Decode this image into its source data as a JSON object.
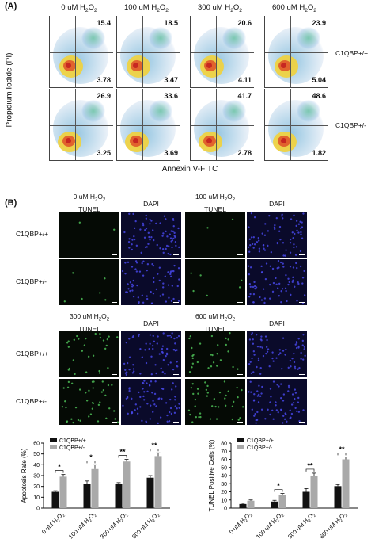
{
  "panelA": {
    "label": "(A)",
    "conditions": [
      "0 uM H2O2",
      "100 uM H2O2",
      "300 uM H2O2",
      "600 uM H2O2"
    ],
    "y_axis": "Propidium Iodide (PI)",
    "x_axis": "Annexin V-FITC",
    "rows": [
      {
        "label": "C1QBP+/+",
        "upper": [
          "15.4",
          "18.5",
          "20.6",
          "23.9"
        ],
        "lower": [
          "3.78",
          "3.47",
          "4.11",
          "5.04"
        ]
      },
      {
        "label": "C1QBP+/-",
        "upper": [
          "26.9",
          "33.6",
          "41.7",
          "48.6"
        ],
        "lower": [
          "3.25",
          "3.69",
          "2.78",
          "1.82"
        ]
      }
    ]
  },
  "panelB": {
    "label": "(B)",
    "groups": [
      {
        "condition": "0 uM H2O2",
        "tunel": "TUNEL",
        "dapi": "DAPI"
      },
      {
        "condition": "100 uM H2O2",
        "tunel": "TUNEL",
        "dapi": "DAPI"
      },
      {
        "condition": "300 uM H2O2",
        "tunel": "TUNEL",
        "dapi": "DAPI"
      },
      {
        "condition": "600 uM H2O2",
        "tunel": "TUNEL",
        "dapi": "DAPI"
      }
    ],
    "row_labels": [
      "C1QBP+/+",
      "C1QBP+/-"
    ]
  },
  "chart_data": [
    {
      "type": "bar",
      "categories": [
        "0 uM H2O2",
        "100 uM H2O2",
        "300 uM H2O2",
        "600 uM H2O2"
      ],
      "series": [
        {
          "name": "C1QBP+/+",
          "values": [
            15,
            22,
            22,
            28
          ],
          "errors": [
            1,
            3,
            1.5,
            2
          ],
          "color": "#111111"
        },
        {
          "name": "C1QBP+/-",
          "values": [
            29,
            36,
            43,
            48
          ],
          "errors": [
            2,
            4,
            2,
            3
          ],
          "color": "#a9a9a9"
        }
      ],
      "significance": [
        "*",
        "*",
        "**",
        "**"
      ],
      "ylabel": "Apoptosis Rate (%)",
      "ylim": [
        0,
        60
      ],
      "yticks": [
        0,
        10,
        20,
        30,
        40,
        50,
        60
      ],
      "legend": "top-left"
    },
    {
      "type": "bar",
      "categories": [
        "0 uM H2O2",
        "100 uM H2O2",
        "300 uM H2O2",
        "600 uM H2O2"
      ],
      "series": [
        {
          "name": "C1QBP+/+",
          "values": [
            5,
            8,
            20,
            27
          ],
          "errors": [
            1,
            1.5,
            4,
            2
          ],
          "color": "#111111"
        },
        {
          "name": "C1QBP+/-",
          "values": [
            9,
            16,
            40,
            60
          ],
          "errors": [
            1,
            2,
            3,
            3
          ],
          "color": "#a9a9a9"
        }
      ],
      "significance": [
        "",
        "*",
        "**",
        "**"
      ],
      "ylabel": "TUNEL Positive Cells (%)",
      "ylim": [
        0,
        80
      ],
      "yticks": [
        0,
        10,
        20,
        30,
        40,
        50,
        60,
        70,
        80
      ],
      "legend": "top-left"
    }
  ]
}
